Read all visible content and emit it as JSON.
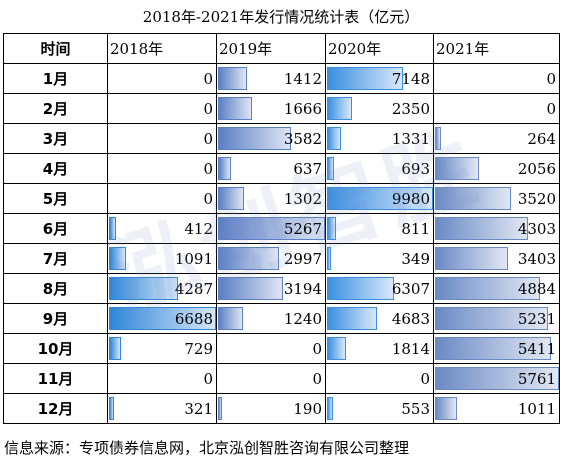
{
  "title": "2018年-2021年发行情况统计表（亿元）",
  "headers": [
    "时间",
    "2018年",
    "2019年",
    "2020年",
    "2021年"
  ],
  "months": [
    "1月",
    "2月",
    "3月",
    "4月",
    "5月",
    "6月",
    "7月",
    "8月",
    "9月",
    "10月",
    "11月",
    "12月"
  ],
  "series": [
    {
      "name": "2018年",
      "max": 6688,
      "color": "#2f86d8",
      "values": [
        0,
        0,
        0,
        0,
        0,
        412,
        1091,
        4287,
        6688,
        729,
        0,
        321
      ]
    },
    {
      "name": "2019年",
      "max": 5267,
      "color": "#5b7fc4",
      "values": [
        1412,
        1666,
        3582,
        637,
        1302,
        5267,
        2997,
        3194,
        1240,
        0,
        0,
        190
      ]
    },
    {
      "name": "2020年",
      "max": 9980,
      "color": "#3a8fe0",
      "values": [
        7148,
        2350,
        1331,
        693,
        9980,
        811,
        349,
        6307,
        4683,
        1814,
        0,
        553
      ]
    },
    {
      "name": "2021年",
      "max": 5761,
      "color": "#6a8ac4",
      "values": [
        0,
        0,
        264,
        2056,
        3520,
        4303,
        3403,
        4884,
        5231,
        5411,
        5761,
        1011
      ]
    }
  ],
  "source": "信息来源：专项债券信息网，北京泓创智胜咨询有限公司整理",
  "watermark": "泓创智胜"
}
